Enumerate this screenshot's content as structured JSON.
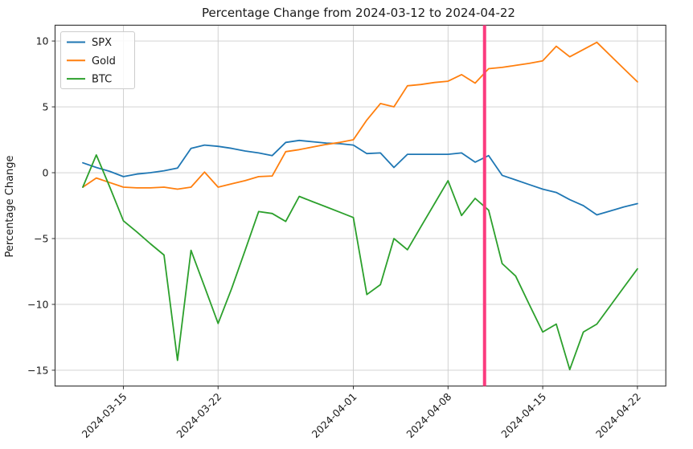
{
  "chart_data": {
    "type": "line",
    "title": "Percentage Change from 2024-03-12 to 2024-04-22",
    "xlabel": "",
    "ylabel": "Percentage Change",
    "grid": true,
    "legend_position": "upper left",
    "ylim": [
      -16.2,
      11.2
    ],
    "xlim_days": [
      -2.05,
      43.1
    ],
    "y_ticks": [
      10,
      5,
      0,
      -5,
      -10,
      -15
    ],
    "x_tick_day_indices": [
      3,
      10,
      20,
      27,
      34,
      41
    ],
    "x_tick_labels": [
      "2024-03-15",
      "2024-03-22",
      "2024-04-01",
      "2024-04-08",
      "2024-04-15",
      "2024-04-22"
    ],
    "x_dates": [
      "2024-03-12",
      "2024-03-13",
      "2024-03-14",
      "2024-03-15",
      "2024-03-16",
      "2024-03-17",
      "2024-03-18",
      "2024-03-19",
      "2024-03-20",
      "2024-03-21",
      "2024-03-22",
      "2024-03-23",
      "2024-03-24",
      "2024-03-25",
      "2024-03-26",
      "2024-03-27",
      "2024-03-28",
      "2024-03-29",
      "2024-03-30",
      "2024-03-31",
      "2024-04-01",
      "2024-04-02",
      "2024-04-03",
      "2024-04-04",
      "2024-04-05",
      "2024-04-06",
      "2024-04-07",
      "2024-04-08",
      "2024-04-09",
      "2024-04-10",
      "2024-04-11",
      "2024-04-12",
      "2024-04-13",
      "2024-04-14",
      "2024-04-15",
      "2024-04-16",
      "2024-04-17",
      "2024-04-18",
      "2024-04-19",
      "2024-04-20",
      "2024-04-21",
      "2024-04-22"
    ],
    "series": [
      {
        "name": "SPX",
        "color": "#1f77b4",
        "values": [
          0.75,
          0.4,
          0.1,
          -0.3,
          -0.1,
          0.0,
          0.15,
          0.35,
          1.85,
          2.1,
          2.0,
          1.85,
          1.65,
          1.5,
          1.3,
          2.3,
          2.45,
          2.35,
          2.25,
          2.2,
          2.1,
          1.45,
          1.5,
          0.4,
          1.4,
          1.4,
          1.4,
          1.4,
          1.5,
          0.8,
          1.3,
          -0.2,
          -0.55,
          -0.9,
          -1.25,
          -1.5,
          -2.05,
          -2.5,
          -3.2,
          -2.9,
          -2.6,
          -2.35
        ]
      },
      {
        "name": "Gold",
        "color": "#ff7f0e",
        "values": [
          -1.1,
          -0.4,
          -0.75,
          -1.1,
          -1.15,
          -1.15,
          -1.1,
          -1.25,
          -1.1,
          0.05,
          -1.1,
          -0.85,
          -0.6,
          -0.3,
          -0.25,
          1.6,
          1.75,
          1.95,
          2.15,
          2.3,
          2.5,
          4.0,
          5.25,
          5.0,
          6.6,
          6.7,
          6.85,
          6.95,
          7.45,
          6.8,
          7.9,
          8.0,
          8.15,
          8.3,
          8.5,
          9.6,
          8.8,
          9.35,
          9.9,
          8.9,
          7.9,
          6.9
        ]
      },
      {
        "name": "BTC",
        "color": "#2ca02c",
        "values": [
          -1.1,
          1.35,
          -1.1,
          -3.65,
          -4.5,
          -5.4,
          -6.25,
          -14.25,
          -5.9,
          -8.65,
          -11.45,
          -8.8,
          -5.9,
          -2.95,
          -3.1,
          -3.7,
          -1.8,
          -2.2,
          -2.6,
          -3.0,
          -3.4,
          -9.25,
          -8.5,
          -5.0,
          -5.85,
          -4.1,
          -2.35,
          -0.6,
          -3.25,
          -1.95,
          -2.85,
          -6.9,
          -7.85,
          -10.0,
          -12.1,
          -11.5,
          -14.95,
          -12.1,
          -11.5,
          -10.1,
          -8.7,
          -7.3
        ]
      }
    ],
    "vline": {
      "day_index": 29.7,
      "color": "#fb3b7e",
      "stroke_width": 4
    },
    "grid_color": "#cccccc",
    "spine_color": "#3c3c3c",
    "tick_color": "#333333"
  }
}
